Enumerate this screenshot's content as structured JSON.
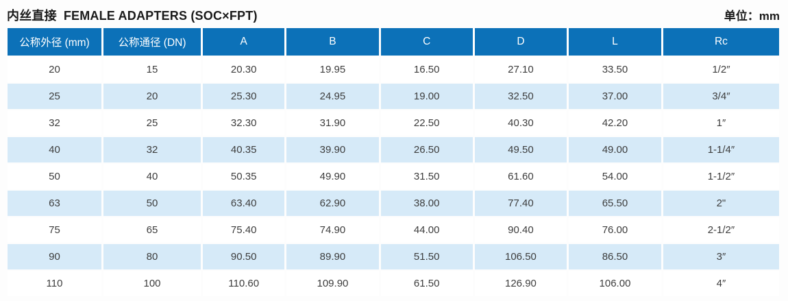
{
  "page": {
    "title_zh": "内丝直接",
    "title_en": "FEMALE ADAPTERS (SOC×FPT)",
    "unit_label": "单位：mm"
  },
  "table": {
    "columns": [
      "公称外径 (mm)",
      "公称通径 (DN)",
      "A",
      "B",
      "C",
      "D",
      "L",
      "Rc"
    ],
    "rows": [
      [
        "20",
        "15",
        "20.30",
        "19.95",
        "16.50",
        "27.10",
        "33.50",
        "1/2″"
      ],
      [
        "25",
        "20",
        "25.30",
        "24.95",
        "19.00",
        "32.50",
        "37.00",
        "3/4″"
      ],
      [
        "32",
        "25",
        "32.30",
        "31.90",
        "22.50",
        "40.30",
        "42.20",
        "1″"
      ],
      [
        "40",
        "32",
        "40.35",
        "39.90",
        "26.50",
        "49.50",
        "49.00",
        "1-1/4″"
      ],
      [
        "50",
        "40",
        "50.35",
        "49.90",
        "31.50",
        "61.60",
        "54.00",
        "1-1/2″"
      ],
      [
        "63",
        "50",
        "63.40",
        "62.90",
        "38.00",
        "77.40",
        "65.50",
        "2\""
      ],
      [
        "75",
        "65",
        "75.40",
        "74.90",
        "44.00",
        "90.40",
        "76.00",
        "2-1/2″"
      ],
      [
        "90",
        "80",
        "90.50",
        "89.90",
        "51.50",
        "106.50",
        "86.50",
        "3″"
      ],
      [
        "110",
        "100",
        "110.60",
        "109.90",
        "61.50",
        "126.90",
        "106.00",
        "4″"
      ]
    ]
  },
  "colors": {
    "header_bg": "#0c71b8",
    "header_text": "#ffffff",
    "row_alt_bg": "#d6eaf8",
    "row_bg": "#ffffff",
    "body_text": "#3d3d3d",
    "title_text": "#1a1a1a"
  }
}
